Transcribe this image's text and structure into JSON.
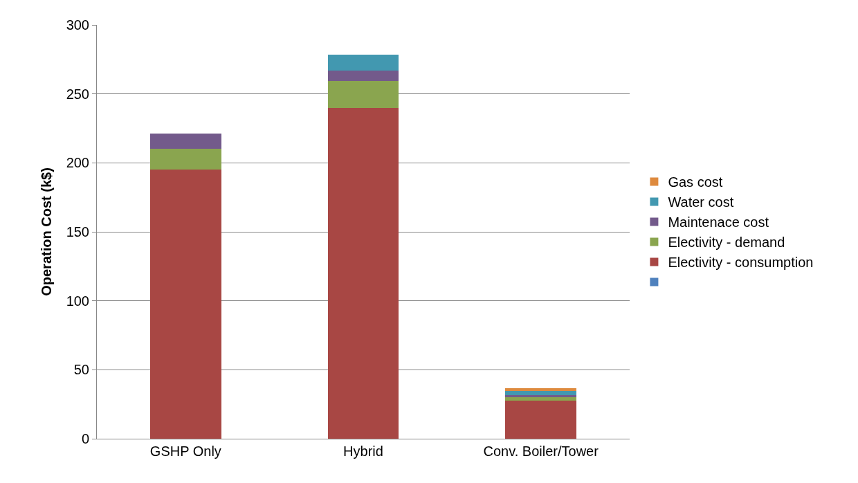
{
  "chart_data": {
    "type": "bar",
    "stacked": true,
    "ylabel": "Operation Cost (k$)",
    "categories": [
      "GSHP Only",
      "Hybrid",
      "Conv. Boiler/Tower"
    ],
    "series": [
      {
        "color": "#4f81bd",
        "values": [
          null,
          null,
          null
        ]
      },
      {
        "name": "Electivity - consumption",
        "color": "#a84744",
        "values": [
          195,
          240,
          27.6
        ]
      },
      {
        "name": "Electivity - demand",
        "color": "#8aa54f",
        "values": [
          15,
          19.3,
          2.7
        ]
      },
      {
        "name": "Maintenace cost",
        "color": "#735a8b",
        "values": [
          11,
          7.7,
          1.5
        ]
      },
      {
        "name": "Water cost",
        "color": "#4298b0",
        "values": [
          0,
          11.6,
          2.7
        ]
      },
      {
        "name": "Gas cost",
        "color": "#de8a3e",
        "values": [
          0,
          0,
          2.1
        ]
      }
    ],
    "ylim": [
      0,
      300
    ],
    "yticks": [
      0,
      50,
      100,
      150,
      200,
      250,
      300
    ],
    "grid": "y",
    "legend": "right"
  }
}
